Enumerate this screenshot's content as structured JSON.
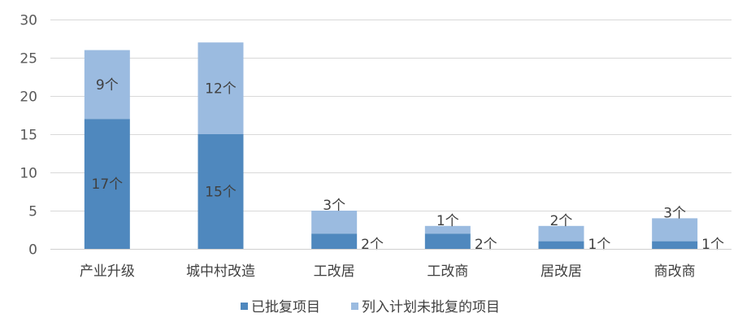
{
  "chart_data": {
    "type": "bar",
    "stacked": true,
    "categories": [
      "产业升级",
      "城中村改造",
      "工改居",
      "工改商",
      "居改居",
      "商改商"
    ],
    "series": [
      {
        "name": "已批复项目",
        "values": [
          17,
          15,
          2,
          2,
          1,
          1
        ],
        "labels": [
          "17个",
          "15个",
          "2个",
          "2个",
          "1个",
          "1个"
        ],
        "color": "#4f88be"
      },
      {
        "name": "列入计划未批复的项目",
        "values": [
          9,
          12,
          3,
          1,
          2,
          3
        ],
        "labels": [
          "9个",
          "12个",
          "3个",
          "1个",
          "2个",
          "3个"
        ],
        "color": "#9bbbe0"
      }
    ],
    "yticks": [
      "0",
      "5",
      "10",
      "15",
      "20",
      "25",
      "30"
    ],
    "ylim": [
      0,
      30
    ],
    "grid": true,
    "legend_position": "bottom",
    "title": "",
    "xlabel": "",
    "ylabel": ""
  }
}
